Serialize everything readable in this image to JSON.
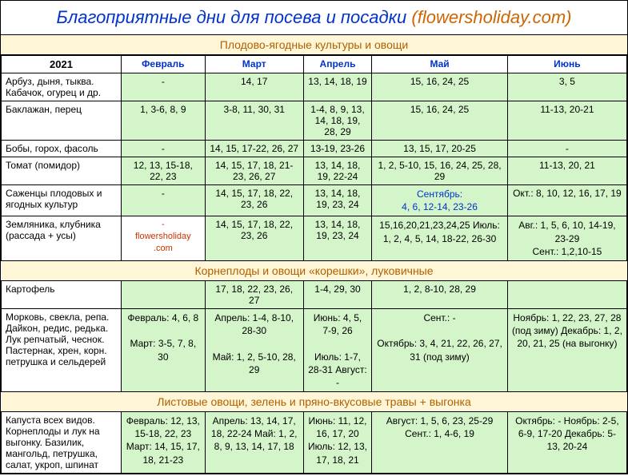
{
  "title_main": "Благоприятные дни для посева и посадки ",
  "title_site": "(flowersholiday.com)",
  "year": "2021",
  "months": [
    "Февраль",
    "Март",
    "Апрель",
    "Май",
    "Июнь"
  ],
  "sections": [
    {
      "header": "Плодово-ягодные культуры и овощи",
      "rows": [
        {
          "label": "Арбуз, дыня, тыква. Кабачок, огурец и др.",
          "cells": [
            "-",
            "14, 17",
            "13, 14, 18, 19",
            "15, 16, 24, 25",
            "3, 5"
          ]
        },
        {
          "label": "Баклажан, перец",
          "cells": [
            "1, 3-6, 8, 9",
            "3-8, 11, 30, 31",
            "1-4, 8, 9, 13, 14, 18, 19, 28, 29",
            "15, 16, 24, 25",
            "11-13, 20-21"
          ]
        },
        {
          "label": "Бобы, горох, фасоль",
          "cells": [
            "-",
            "14, 15, 17-22, 26, 27",
            "13-19, 23-26",
            "13, 15, 17, 20-25",
            "-"
          ]
        },
        {
          "label": "Томат (помидор)",
          "cells": [
            "12, 13, 15-18, 22, 23",
            "14, 15, 17, 18, 21-23, 26, 27",
            "13, 14, 18, 19, 22-24",
            "1, 2, 5-10, 15, 16, 24, 25, 28, 29",
            "11-13, 20, 21"
          ]
        },
        {
          "label": "Саженцы плодовых и ягодных культур",
          "cells": [
            "-",
            "14, 15, 17, 18, 22, 23, 26",
            "13, 14, 18, 19, 23, 24",
            "Сентябрь:\n4, 6, 12-14, 23-26",
            "Окт.: 8, 10, 12, 16, 17, 19"
          ]
        },
        {
          "label": "Земляника, клубника (рассада + усы)",
          "watermark": "-\nflowersholiday\n.com",
          "cells": [
            null,
            "14, 15, 17, 18, 22, 23, 26",
            "13, 14, 18, 19, 23, 24",
            "15,16,20,21,23,24,25 Июль: 1, 2, 4, 5, 14, 18-22, 26-30",
            "Авг.: 1, 5, 6, 10, 14-19, 23-29\nСент.: 1,2,10-15"
          ]
        }
      ]
    },
    {
      "header": "Корнеплоды и овощи «корешки», луковичные",
      "rows": [
        {
          "label": "Картофель",
          "cells": [
            "",
            "17, 18, 22, 23, 26, 27",
            "1-4, 29, 30",
            "1, 2, 8-10, 28, 29",
            ""
          ]
        },
        {
          "label": "Морковь, свекла, репа. Дайкон, редис, редька. Лук репчатый, чеснок. Пастернак, хрен, корн. петрушка и сельдерей",
          "cells_multi": [
            "Февраль: 4, 6, 8\n\nМарт: 3-5, 7, 8, 30",
            "Апрель: 1-4, 8-10, 28-30\n\nМай: 1, 2, 5-10, 28, 29",
            "Июнь: 4, 5, 7-9, 26\n\nИюль: 1-7, 28-31 Август: -",
            "Сент.: -\n\nОктябрь: 3, 4, 21, 22, 26, 27, 31 (под зиму)",
            "Ноябрь: 1, 22, 23, 27, 28 (под зиму) Декабрь: 1, 2, 20, 21, 25 (на выгонку)"
          ]
        }
      ]
    },
    {
      "header": "Листовые овощи, зелень и пряно-вкусовые травы + выгонка",
      "rows": [
        {
          "label": "Капуста всех видов. Корнеплоды и лук на выгонку. Базилик, мангольд, петрушка, салат, укроп, шпинат",
          "cells_multi": [
            "Февраль: 12, 13, 15-18, 22, 23\nМарт: 14, 15, 17, 18, 21-23",
            "Апрель: 13, 14, 17, 18, 22-24 Май: 1, 2, 8, 9, 13, 14, 17, 18",
            "Июнь: 11, 12, 16, 17, 20\nИюль: 12, 13, 17, 18, 21",
            "Август: 1, 5, 6, 23, 25-29\nСент.: 1, 4-6, 19",
            "Октябрь: - Ноябрь: 2-5, 6-9, 17-20 Декабрь: 5-13, 20-24"
          ]
        }
      ]
    }
  ]
}
